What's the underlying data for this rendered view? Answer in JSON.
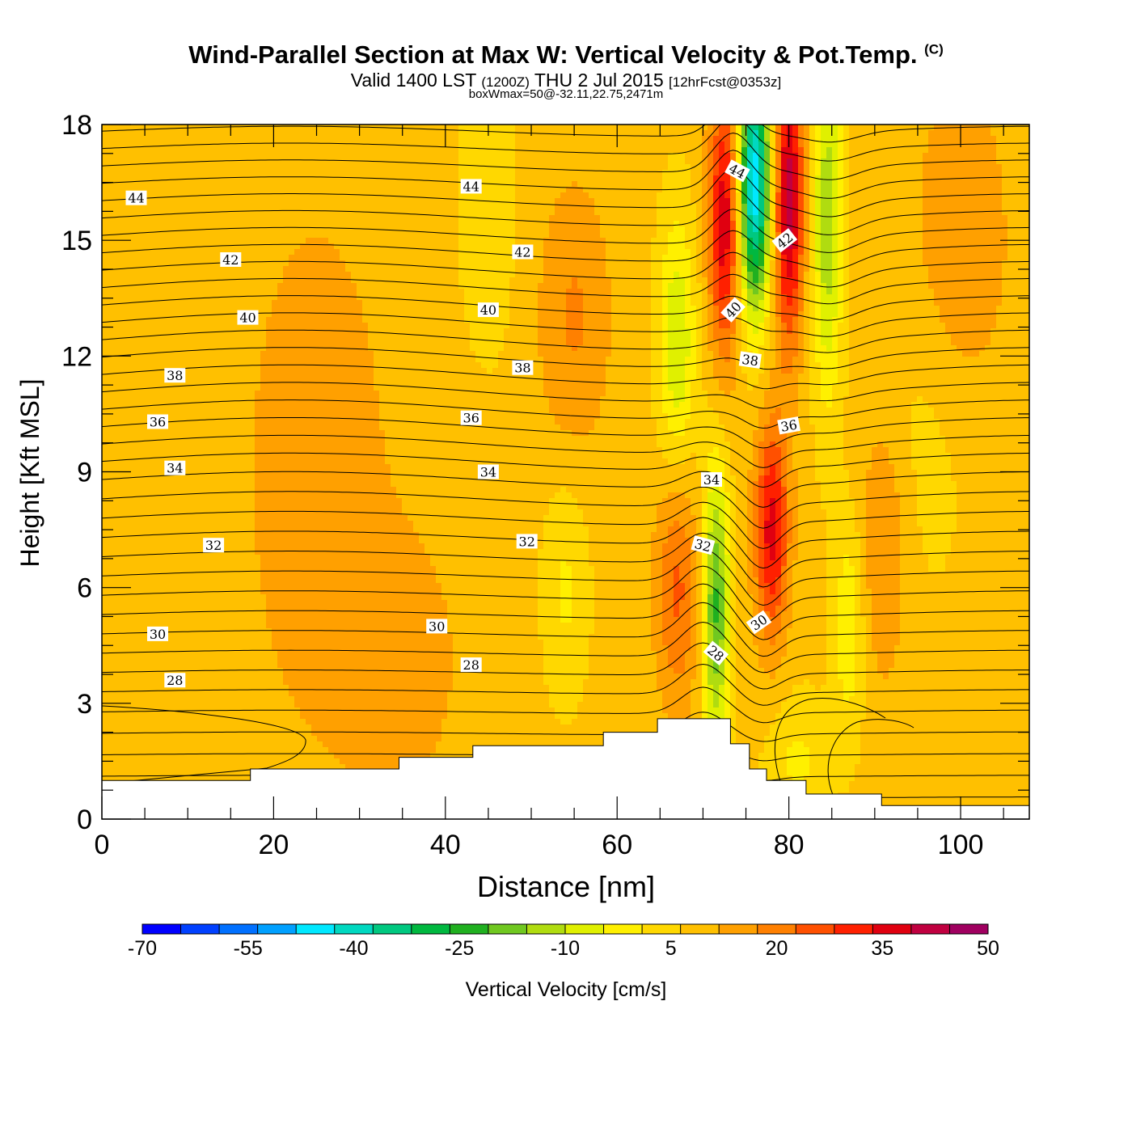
{
  "header": {
    "title": "Wind-Parallel Section at Max W: Vertical Velocity & Pot.Temp.",
    "copyright": "(C)",
    "valid_prefix": "Valid 1400 LST",
    "valid_utc": "(1200Z)",
    "valid_date": "THU 2 Jul 2015",
    "forecast": "[12hrFcst@0353z]",
    "box_info": "boxWmax=50@-32.11,22.75,2471m"
  },
  "chart_data": {
    "type": "heatmap",
    "xlabel": "Distance [nm]",
    "ylabel": "Height [Kft MSL]",
    "xlim": [
      0,
      108
    ],
    "ylim": [
      0,
      18
    ],
    "x_ticks": [
      0,
      20,
      40,
      60,
      80,
      100
    ],
    "y_ticks": [
      0,
      3,
      6,
      9,
      12,
      15,
      18
    ],
    "colorbar": {
      "label": "Vertical Velocity [cm/s]",
      "min": -70,
      "max": 50,
      "step": 5,
      "tick_labels": [
        -70,
        -55,
        -40,
        -25,
        -10,
        5,
        20,
        35,
        50
      ],
      "colors": [
        "#0000ff",
        "#0040ff",
        "#0070ff",
        "#00a0ff",
        "#00e8ff",
        "#00d8c0",
        "#00c880",
        "#00b840",
        "#20b020",
        "#70c820",
        "#b0dc10",
        "#e0f000",
        "#fff000",
        "#ffd800",
        "#ffc000",
        "#ffa000",
        "#ff8000",
        "#ff5000",
        "#ff2000",
        "#e00010",
        "#c00040",
        "#a00060"
      ]
    },
    "w_features": [
      {
        "x": 67,
        "z": 12.3,
        "sx": 1.5,
        "sz": 2.3,
        "w": -18
      },
      {
        "x": 71.5,
        "z": 5.5,
        "sx": 1.1,
        "sz": 2.6,
        "w": -30
      },
      {
        "x": 78,
        "z": 7.5,
        "sx": 1.4,
        "sz": 2.0,
        "w": 28
      },
      {
        "x": 76,
        "z": 16.5,
        "sx": 1.3,
        "sz": 2.3,
        "w": -55
      },
      {
        "x": 72.5,
        "z": 15.5,
        "sx": 1.3,
        "sz": 2.5,
        "w": 30
      },
      {
        "x": 80,
        "z": 16.0,
        "sx": 1.2,
        "sz": 2.6,
        "w": 35
      },
      {
        "x": 84.5,
        "z": 15.5,
        "sx": 1.2,
        "sz": 3.2,
        "w": -22
      },
      {
        "x": 87,
        "z": 5.0,
        "sx": 1.3,
        "sz": 2.0,
        "w": -12
      },
      {
        "x": 81,
        "z": 1.5,
        "sx": 2.5,
        "sz": 1.2,
        "w": -8
      },
      {
        "x": 54,
        "z": 6.0,
        "sx": 1.8,
        "sz": 2.0,
        "w": -8
      },
      {
        "x": 45,
        "z": 16.0,
        "sx": 2.5,
        "sz": 3.0,
        "w": -5
      },
      {
        "x": 67,
        "z": 6.0,
        "sx": 1.8,
        "sz": 2.2,
        "w": 16
      },
      {
        "x": 55,
        "z": 13.0,
        "sx": 3.0,
        "sz": 2.5,
        "w": 10
      },
      {
        "x": 96,
        "z": 10.0,
        "sx": 4.0,
        "sz": 3.0,
        "w": -4
      },
      {
        "x": 91,
        "z": 7.0,
        "sx": 2.0,
        "sz": 2.5,
        "w": 10
      },
      {
        "x": 25,
        "z": 9.0,
        "sx": 6.0,
        "sz": 5.0,
        "w": 8
      },
      {
        "x": 35,
        "z": 4.0,
        "sx": 5.0,
        "sz": 2.5,
        "w": 7
      },
      {
        "x": 100,
        "z": 15.0,
        "sx": 4.0,
        "sz": 3.0,
        "w": 9
      }
    ],
    "theta_levels": [
      25.5,
      26,
      26.5,
      27,
      27.5,
      28,
      28.5,
      29,
      29.5,
      30,
      30.5,
      31,
      31.5,
      32,
      32.5,
      33,
      33.5,
      34,
      34.5,
      35,
      35.5,
      36,
      36.5,
      37,
      37.5,
      38,
      38.5,
      39,
      39.5,
      40,
      40.5,
      41,
      41.5,
      42,
      42.5,
      43,
      43.5,
      44,
      44.5
    ],
    "theta_labels": [
      {
        "text": "44",
        "x": 4,
        "z": 16.1,
        "rot": 0
      },
      {
        "text": "44",
        "x": 43,
        "z": 16.4,
        "rot": 0
      },
      {
        "text": "44",
        "x": 74,
        "z": 16.8,
        "rot": 28
      },
      {
        "text": "42",
        "x": 15,
        "z": 14.5,
        "rot": 0
      },
      {
        "text": "42",
        "x": 49,
        "z": 14.7,
        "rot": 0
      },
      {
        "text": "42",
        "x": 79.5,
        "z": 15.0,
        "rot": -38
      },
      {
        "text": "40",
        "x": 17,
        "z": 13.0,
        "rot": 0
      },
      {
        "text": "40",
        "x": 45,
        "z": 13.2,
        "rot": 0
      },
      {
        "text": "40",
        "x": 73.5,
        "z": 13.2,
        "rot": -48
      },
      {
        "text": "38",
        "x": 8.5,
        "z": 11.5,
        "rot": 0
      },
      {
        "text": "38",
        "x": 49,
        "z": 11.7,
        "rot": 0
      },
      {
        "text": "38",
        "x": 75.5,
        "z": 11.9,
        "rot": 8
      },
      {
        "text": "36",
        "x": 6.5,
        "z": 10.3,
        "rot": 0
      },
      {
        "text": "36",
        "x": 43,
        "z": 10.4,
        "rot": 0
      },
      {
        "text": "36",
        "x": 80,
        "z": 10.2,
        "rot": -10
      },
      {
        "text": "34",
        "x": 8.5,
        "z": 9.1,
        "rot": 0
      },
      {
        "text": "34",
        "x": 45,
        "z": 9.0,
        "rot": 0
      },
      {
        "text": "34",
        "x": 71,
        "z": 8.8,
        "rot": 0
      },
      {
        "text": "32",
        "x": 13,
        "z": 7.1,
        "rot": 0
      },
      {
        "text": "32",
        "x": 49.5,
        "z": 7.2,
        "rot": 0
      },
      {
        "text": "32",
        "x": 70,
        "z": 7.1,
        "rot": 15
      },
      {
        "text": "30",
        "x": 6.5,
        "z": 4.8,
        "rot": 0
      },
      {
        "text": "30",
        "x": 39,
        "z": 5.0,
        "rot": 0
      },
      {
        "text": "30",
        "x": 76.5,
        "z": 5.1,
        "rot": -35
      },
      {
        "text": "28",
        "x": 8.5,
        "z": 3.6,
        "rot": 0
      },
      {
        "text": "28",
        "x": 43,
        "z": 4.0,
        "rot": 0
      },
      {
        "text": "28",
        "x": 71.5,
        "z": 4.3,
        "rot": 40
      }
    ],
    "terrain": [
      [
        0,
        1.0
      ],
      [
        17.3,
        1.0
      ],
      [
        17.3,
        1.3
      ],
      [
        34.6,
        1.3
      ],
      [
        34.6,
        1.6
      ],
      [
        43.2,
        1.6
      ],
      [
        43.2,
        1.9
      ],
      [
        58.4,
        1.9
      ],
      [
        58.4,
        2.25
      ],
      [
        64.7,
        2.25
      ],
      [
        64.7,
        2.6
      ],
      [
        73.2,
        2.6
      ],
      [
        73.2,
        1.95
      ],
      [
        75.4,
        1.95
      ],
      [
        75.4,
        1.3
      ],
      [
        77.4,
        1.3
      ],
      [
        77.4,
        1.0
      ],
      [
        82.0,
        1.0
      ],
      [
        82.0,
        0.65
      ],
      [
        90.8,
        0.65
      ],
      [
        90.8,
        0.35
      ],
      [
        108,
        0.35
      ]
    ]
  }
}
